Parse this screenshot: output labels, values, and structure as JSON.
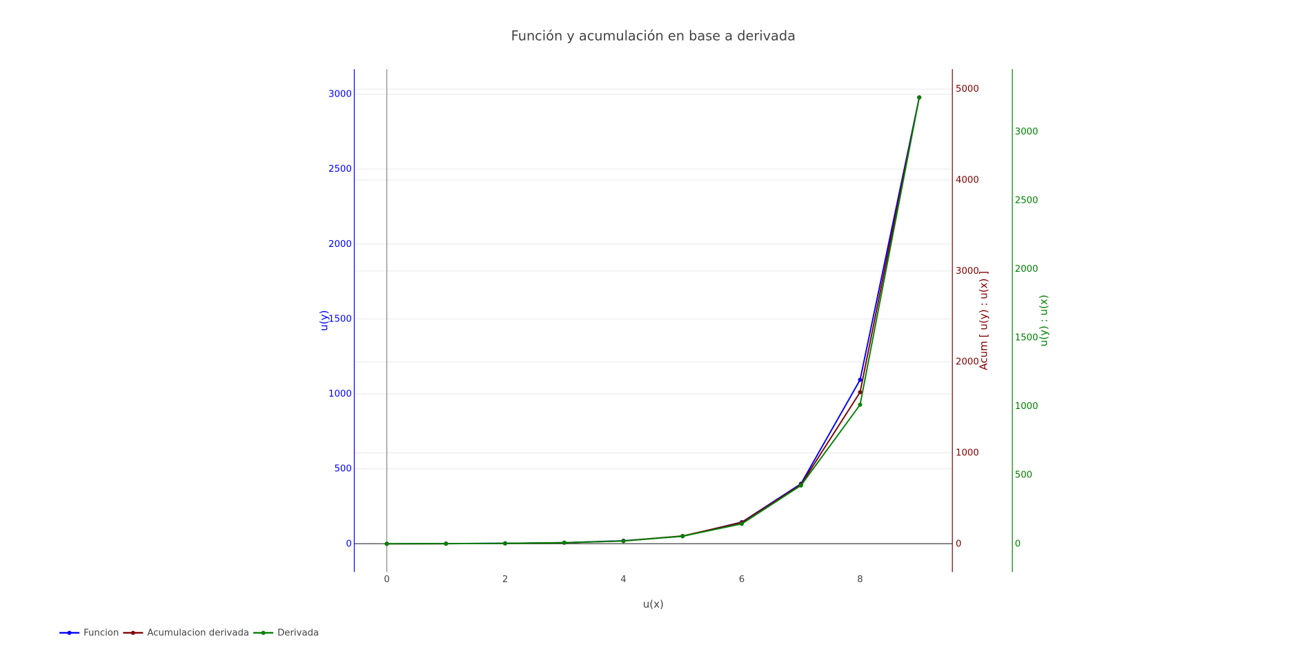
{
  "chart_data": {
    "type": "line",
    "title": "Función y acumulación en base a derivada",
    "xlabel": "u(x)",
    "ylabel": "u(y)",
    "y2label": "Acum [ u(y) : u(x) ]",
    "y3label": "u(y) : u(x)",
    "x": [
      0,
      1,
      2,
      3,
      4,
      5,
      6,
      7,
      8,
      9
    ],
    "xlim": [
      -0.55,
      9.56
    ],
    "xticks": [
      0,
      2,
      4,
      6,
      8
    ],
    "ylim": [
      -189,
      3167
    ],
    "yticks": [
      0,
      500,
      1000,
      1500,
      2000,
      2500,
      3000
    ],
    "y2lim": [
      -311,
      5220
    ],
    "y2ticks": [
      0,
      1000,
      2000,
      3000,
      4000,
      5000
    ],
    "y3lim": [
      -206,
      3455
    ],
    "y3ticks": [
      0,
      500,
      1000,
      1500,
      2000,
      2500,
      3000
    ],
    "grid": true,
    "legend": "bottom-left",
    "series": [
      {
        "name": "Funcion",
        "color": "#0000ff",
        "axis": "y",
        "values": [
          0,
          1,
          3,
          7,
          20,
          50,
          144,
          400,
          1094,
          2978
        ]
      },
      {
        "name": "Acumulacion derivada",
        "color": "#800000",
        "axis": "y2",
        "values": [
          0,
          1,
          4,
          11,
          31,
          86,
          234,
          650,
          1667,
          4909
        ]
      },
      {
        "name": "Derivada",
        "color": "#008000",
        "axis": "y3",
        "values": [
          0,
          1,
          3,
          8,
          20,
          55,
          145,
          424,
          1012,
          3248
        ]
      }
    ]
  }
}
